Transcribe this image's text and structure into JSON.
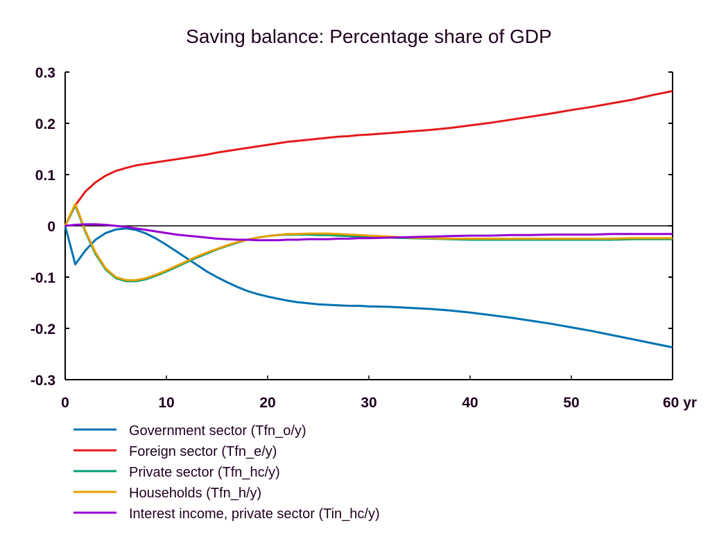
{
  "chart_data": {
    "type": "line",
    "title": "Saving balance: Percentage share of GDP",
    "xlabel": "",
    "ylabel": "",
    "x_unit_label": "yr",
    "xlim": [
      0,
      60
    ],
    "ylim": [
      -0.3,
      0.3
    ],
    "x_ticks": [
      0,
      10,
      20,
      30,
      40,
      50,
      60
    ],
    "x_tick_labels": [
      "0",
      "10",
      "20",
      "30",
      "40",
      "50",
      "60 yr"
    ],
    "y_ticks": [
      0.3,
      0.2,
      0.1,
      0,
      -0.1,
      -0.2,
      -0.3
    ],
    "y_tick_labels": [
      "0.3",
      "0.2",
      "0.1",
      "0",
      "-0.1",
      "-0.2",
      "-0.3"
    ],
    "grid": false,
    "zero_line": true,
    "legend_position": "bottom-left",
    "x": [
      0,
      1,
      2,
      3,
      4,
      5,
      6,
      7,
      8,
      9,
      10,
      11,
      12,
      13,
      14,
      15,
      16,
      17,
      18,
      19,
      20,
      21,
      22,
      23,
      24,
      25,
      26,
      27,
      28,
      29,
      30,
      32,
      34,
      36,
      38,
      40,
      42,
      44,
      46,
      48,
      50,
      52,
      54,
      56,
      58,
      60
    ],
    "series": [
      {
        "name": "Government sector (Tfn_o/y)",
        "color": "#0072b2",
        "values": [
          0,
          -0.075,
          -0.048,
          -0.027,
          -0.014,
          -0.007,
          -0.005,
          -0.008,
          -0.015,
          -0.025,
          -0.037,
          -0.05,
          -0.063,
          -0.076,
          -0.089,
          -0.1,
          -0.11,
          -0.119,
          -0.127,
          -0.133,
          -0.138,
          -0.142,
          -0.146,
          -0.149,
          -0.151,
          -0.153,
          -0.154,
          -0.155,
          -0.156,
          -0.156,
          -0.157,
          -0.158,
          -0.16,
          -0.162,
          -0.165,
          -0.169,
          -0.174,
          -0.179,
          -0.185,
          -0.191,
          -0.198,
          -0.205,
          -0.213,
          -0.221,
          -0.229,
          -0.237
        ]
      },
      {
        "name": "Foreign sector (Tfn_e/y)",
        "color": "#e41a1c",
        "values": [
          0,
          0.04,
          0.067,
          0.085,
          0.098,
          0.107,
          0.113,
          0.118,
          0.121,
          0.124,
          0.127,
          0.13,
          0.133,
          0.136,
          0.139,
          0.143,
          0.146,
          0.149,
          0.152,
          0.155,
          0.158,
          0.161,
          0.164,
          0.166,
          0.168,
          0.17,
          0.172,
          0.174,
          0.175,
          0.177,
          0.178,
          0.181,
          0.184,
          0.187,
          0.191,
          0.196,
          0.201,
          0.207,
          0.213,
          0.219,
          0.226,
          0.232,
          0.239,
          0.246,
          0.255,
          0.263
        ]
      },
      {
        "name": "Private sector (Tfn_hc/y)",
        "color": "#009e73",
        "values": [
          0,
          0.04,
          -0.012,
          -0.055,
          -0.085,
          -0.102,
          -0.108,
          -0.108,
          -0.104,
          -0.097,
          -0.089,
          -0.08,
          -0.071,
          -0.062,
          -0.054,
          -0.046,
          -0.039,
          -0.033,
          -0.027,
          -0.023,
          -0.02,
          -0.018,
          -0.017,
          -0.017,
          -0.017,
          -0.018,
          -0.018,
          -0.019,
          -0.02,
          -0.021,
          -0.022,
          -0.023,
          -0.024,
          -0.025,
          -0.026,
          -0.027,
          -0.027,
          -0.027,
          -0.027,
          -0.027,
          -0.027,
          -0.027,
          -0.027,
          -0.026,
          -0.026,
          -0.026
        ]
      },
      {
        "name": "Households (Tfn_h/y)",
        "color": "#e69f00",
        "values": [
          0,
          0.043,
          -0.01,
          -0.052,
          -0.083,
          -0.1,
          -0.106,
          -0.106,
          -0.102,
          -0.095,
          -0.087,
          -0.078,
          -0.069,
          -0.06,
          -0.052,
          -0.045,
          -0.038,
          -0.032,
          -0.027,
          -0.023,
          -0.02,
          -0.018,
          -0.016,
          -0.016,
          -0.015,
          -0.015,
          -0.015,
          -0.016,
          -0.017,
          -0.018,
          -0.019,
          -0.021,
          -0.023,
          -0.024,
          -0.025,
          -0.025,
          -0.025,
          -0.025,
          -0.025,
          -0.025,
          -0.025,
          -0.025,
          -0.025,
          -0.024,
          -0.024,
          -0.024
        ]
      },
      {
        "name": "Interest income, private sector (Tin_hc/y)",
        "color": "#9400d3",
        "values": [
          0,
          0.002,
          0.003,
          0.003,
          0.002,
          0,
          -0.002,
          -0.005,
          -0.008,
          -0.011,
          -0.014,
          -0.017,
          -0.019,
          -0.021,
          -0.023,
          -0.025,
          -0.026,
          -0.027,
          -0.027,
          -0.028,
          -0.028,
          -0.028,
          -0.027,
          -0.027,
          -0.026,
          -0.026,
          -0.026,
          -0.025,
          -0.025,
          -0.024,
          -0.024,
          -0.023,
          -0.022,
          -0.021,
          -0.02,
          -0.019,
          -0.019,
          -0.018,
          -0.018,
          -0.017,
          -0.017,
          -0.017,
          -0.016,
          -0.016,
          -0.016,
          -0.016
        ]
      }
    ]
  }
}
